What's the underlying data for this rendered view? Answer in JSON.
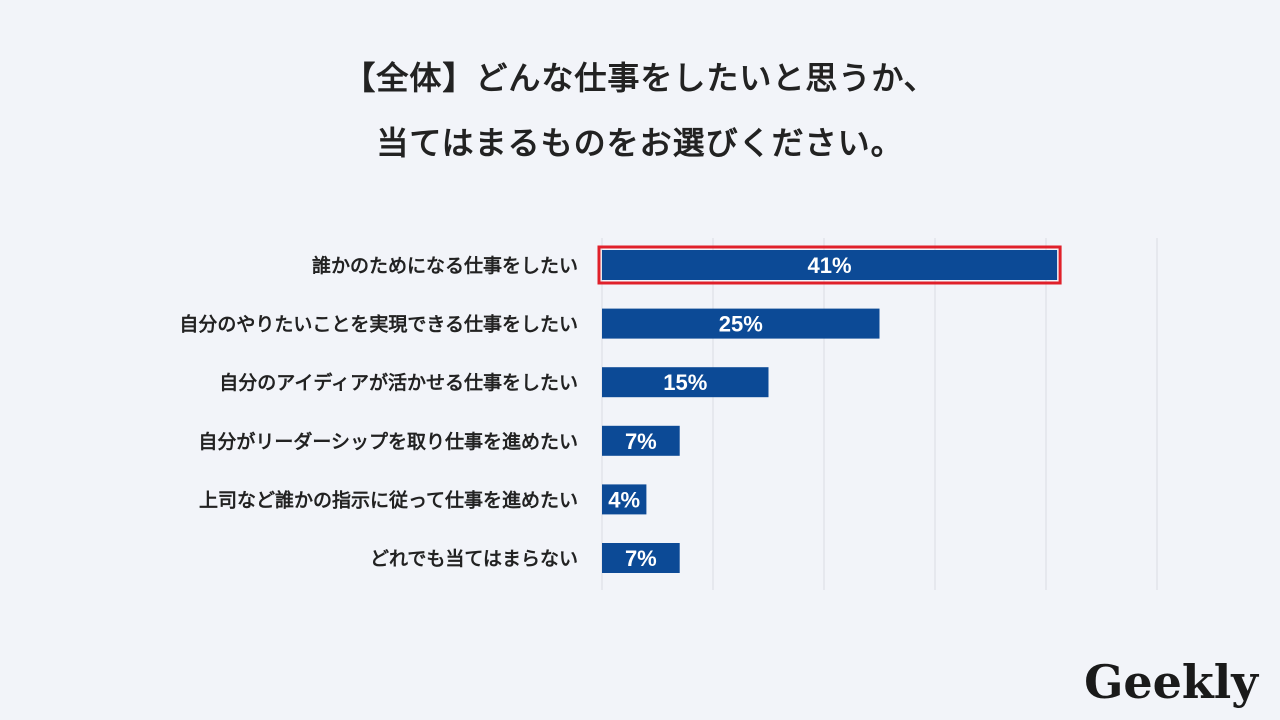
{
  "title_line1": "【全体】どんな仕事をしたいと思うか、",
  "title_line2": "当てはまるものをお選びください。",
  "logo_text": "Geekly",
  "colors": {
    "bar": "#0c4a96",
    "highlight_border": "#e0202a",
    "grid": "#d9dce3",
    "background": "#f2f4f9",
    "label_text": "#222222",
    "value_text": "#ffffff"
  },
  "chart_data": {
    "type": "bar",
    "orientation": "horizontal",
    "categories": [
      "誰かのためになる仕事をしたい",
      "自分のやりたいことを実現できる仕事をしたい",
      "自分のアイディアが活かせる仕事をしたい",
      "自分がリーダーシップを取り仕事を進めたい",
      "上司など誰かの指示に従って仕事を進めたい",
      "どれでも当てはまらない"
    ],
    "values": [
      41,
      25,
      15,
      7,
      4,
      7
    ],
    "value_labels": [
      "41%",
      "25%",
      "15%",
      "7%",
      "4%",
      "7%"
    ],
    "unit": "%",
    "xlim": [
      0,
      50
    ],
    "grid": true,
    "highlighted_index": 0
  }
}
